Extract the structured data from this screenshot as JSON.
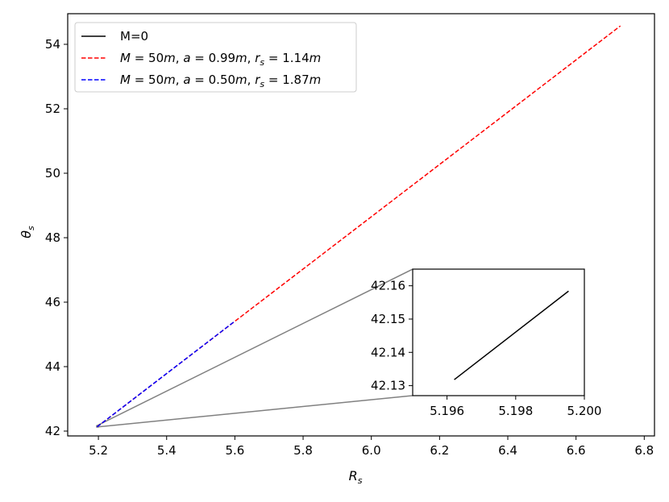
{
  "chart_data": {
    "type": "line",
    "xlabel": "R",
    "xlabel_sub": "s",
    "ylabel": "θ",
    "ylabel_sub": "s",
    "xlim": [
      5.11,
      6.83
    ],
    "ylim": [
      41.85,
      54.95
    ],
    "xticks": [
      5.2,
      5.4,
      5.6,
      5.8,
      6.0,
      6.2,
      6.4,
      6.6,
      6.8
    ],
    "xtick_labels": [
      "5.2",
      "5.4",
      "5.6",
      "5.8",
      "6.0",
      "6.2",
      "6.4",
      "6.6",
      "6.8"
    ],
    "yticks": [
      42,
      44,
      46,
      48,
      50,
      52,
      54
    ],
    "ytick_labels": [
      "42",
      "44",
      "46",
      "48",
      "50",
      "52",
      "54"
    ],
    "grid": false,
    "legend_position": "top-left",
    "series": [
      {
        "name": "M=0",
        "legend_parts": [
          {
            "t": "M=0",
            "style": "normal"
          }
        ],
        "color": "#000000",
        "dash": "solid",
        "x": [
          5.19621,
          5.19954
        ],
        "y": [
          42.1318,
          42.1584
        ]
      },
      {
        "name": "M = 50m, a = 0.99m, r_s = 1.14m",
        "legend_parts": [
          {
            "t": "M",
            "style": "italic"
          },
          {
            "t": " = 50",
            "style": "normal"
          },
          {
            "t": "m",
            "style": "italic"
          },
          {
            "t": ", ",
            "style": "normal"
          },
          {
            "t": "a",
            "style": "italic"
          },
          {
            "t": " = 0.99",
            "style": "normal"
          },
          {
            "t": "m",
            "style": "italic"
          },
          {
            "t": ", ",
            "style": "normal"
          },
          {
            "t": "r",
            "style": "italic"
          },
          {
            "t": "s",
            "style": "sub"
          },
          {
            "t": " = 1.14",
            "style": "normal"
          },
          {
            "t": "m",
            "style": "italic"
          }
        ],
        "color": "#ff0000",
        "dash": "dashed",
        "x": [
          5.196,
          6.73
        ],
        "y": [
          42.13,
          54.57
        ]
      },
      {
        "name": "M = 50m, a = 0.50m, r_s = 1.87m",
        "legend_parts": [
          {
            "t": "M",
            "style": "italic"
          },
          {
            "t": " = 50",
            "style": "normal"
          },
          {
            "t": "m",
            "style": "italic"
          },
          {
            "t": ", ",
            "style": "normal"
          },
          {
            "t": "a",
            "style": "italic"
          },
          {
            "t": " = 0.50",
            "style": "normal"
          },
          {
            "t": "m",
            "style": "italic"
          },
          {
            "t": ", ",
            "style": "normal"
          },
          {
            "t": "r",
            "style": "italic"
          },
          {
            "t": "s",
            "style": "sub"
          },
          {
            "t": " = 1.87",
            "style": "normal"
          },
          {
            "t": "m",
            "style": "italic"
          }
        ],
        "color": "#0000ff",
        "dash": "dashed",
        "x": [
          5.196,
          5.6
        ],
        "y": [
          42.13,
          45.41
        ]
      }
    ],
    "inset": {
      "xlim": [
        5.195,
        5.2
      ],
      "ylim": [
        42.127,
        42.165
      ],
      "xticks": [
        5.196,
        5.198,
        5.2
      ],
      "xtick_labels": [
        "5.196",
        "5.198",
        "5.200"
      ],
      "yticks": [
        42.13,
        42.14,
        42.15,
        42.16
      ],
      "ytick_labels": [
        "42.13",
        "42.14",
        "42.15",
        "42.16"
      ],
      "zoom_region": {
        "x": [
          5.195,
          5.2
        ],
        "y": [
          42.127,
          42.165
        ]
      },
      "connector_color": "#808080"
    }
  }
}
